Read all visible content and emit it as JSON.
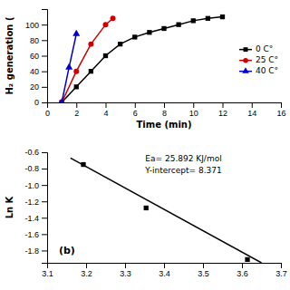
{
  "chart_data": [
    {
      "type": "line",
      "xlabel": "Time (min)",
      "ylabel": "H₂ generation (",
      "xlim": [
        0,
        16
      ],
      "ylim": [
        0,
        120
      ],
      "xticks": [
        0,
        2,
        4,
        6,
        8,
        10,
        12,
        14,
        16
      ],
      "yticks": [
        0,
        20,
        40,
        60,
        80,
        100
      ],
      "legend": "right",
      "grid": false,
      "series": [
        {
          "name": "0 C°",
          "color": "#000000",
          "marker": "square",
          "x": [
            1,
            2,
            3,
            4,
            5,
            6,
            7,
            8,
            9,
            10,
            11,
            12
          ],
          "values": [
            0,
            20,
            40,
            60,
            75,
            84,
            90,
            95,
            100,
            105,
            108,
            110
          ]
        },
        {
          "name": "25 C°",
          "color": "#cc0000",
          "marker": "circle",
          "x": [
            1,
            2,
            3,
            4,
            4.5
          ],
          "values": [
            0,
            40,
            75,
            100,
            108
          ]
        },
        {
          "name": "40 C°",
          "color": "#0000cc",
          "marker": "triangle",
          "x": [
            1,
            1.5,
            2
          ],
          "values": [
            0,
            45,
            88
          ]
        }
      ]
    },
    {
      "type": "scatter",
      "ylabel": "Ln K",
      "xlim": [
        3.1,
        3.7
      ],
      "ylim": [
        -1.95,
        -0.6
      ],
      "xticks": [
        3.1,
        3.2,
        3.3,
        3.4,
        3.5,
        3.6,
        3.7
      ],
      "yticks": [
        -1.8,
        -1.6,
        -1.4,
        -1.2,
        {
          "value": -1.0,
          "label": "-1.0"
        },
        -0.8,
        -0.6
      ],
      "grid": false,
      "annotations": [
        "(b)",
        "Ea= 25.892 KJ/mol",
        "Y-intercept= 8.371"
      ],
      "series": [
        {
          "type": "line",
          "color": "#000000",
          "x": [
            3.16,
            3.65
          ],
          "values": [
            -0.67,
            -1.95
          ]
        },
        {
          "type": "scatter",
          "color": "#000000",
          "marker": "square",
          "x": [
            3.193,
            3.354,
            3.614
          ],
          "values": [
            -0.75,
            -1.28,
            -1.91
          ]
        }
      ]
    }
  ]
}
